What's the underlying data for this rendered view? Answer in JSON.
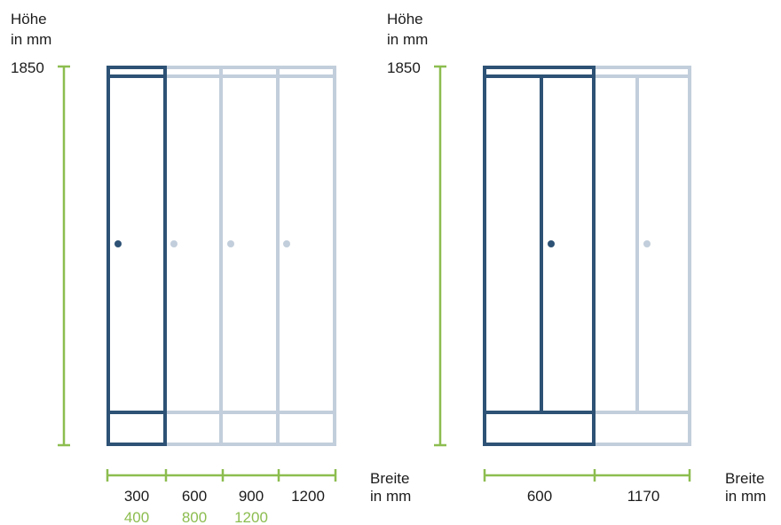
{
  "colors": {
    "dark": "#2d5275",
    "light": "#c2cedb",
    "green": "#8cbd4f",
    "text": "#1c1c1c"
  },
  "left": {
    "height_label_line1": "Höhe",
    "height_label_line2": "in mm",
    "height_value": "1850",
    "width_label_line1": "Breite",
    "width_label_line2": "in mm",
    "widths_primary": [
      "300",
      "600",
      "900",
      "1200"
    ],
    "widths_secondary": [
      "400",
      "800",
      "1200"
    ]
  },
  "right": {
    "height_label_line1": "Höhe",
    "height_label_line2": "in mm",
    "height_value": "1850",
    "width_label_line1": "Breite",
    "width_label_line2": "in mm",
    "widths_primary": [
      "600",
      "1170"
    ]
  }
}
